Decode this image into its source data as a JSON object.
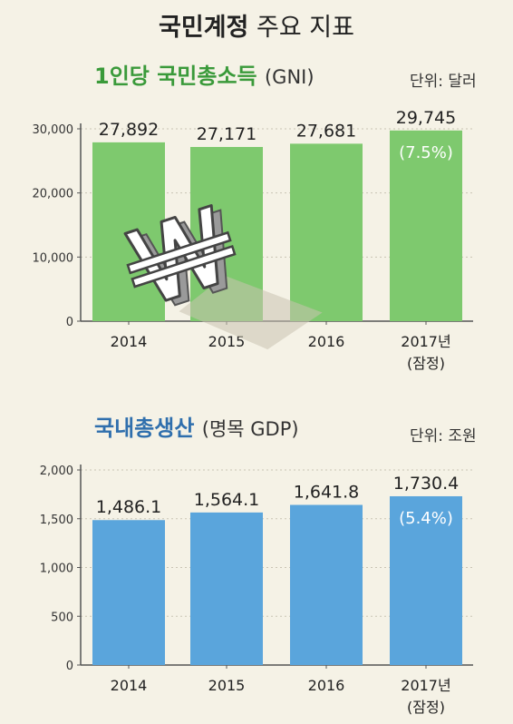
{
  "title": {
    "main": "국민계정",
    "sub": "주요 지표"
  },
  "colors": {
    "gni_bar": "#7ec96e",
    "gdp_bar": "#5aa5dc",
    "background": "#f5f2e6",
    "gni_title": "#3a9a3a",
    "gdp_title": "#2f6fad"
  },
  "icons": [
    "won-sign-icon"
  ],
  "chart_data": [
    {
      "type": "bar",
      "title": "1인당 국민총소득",
      "subtitle": "(GNI)",
      "unit": "단위: 달러",
      "categories": [
        "2014",
        "2015",
        "2016",
        "2017년"
      ],
      "category_notes": [
        "",
        "",
        "",
        "(잠정)"
      ],
      "values": [
        27892,
        27171,
        27681,
        29745
      ],
      "value_labels": [
        "27,892",
        "27,171",
        "27,681",
        "29,745"
      ],
      "annotations": [
        "",
        "",
        "",
        "(7.5%)"
      ],
      "yticks": [
        "0",
        "10,000",
        "20,000",
        "30,000"
      ],
      "ylim": [
        0,
        30000
      ],
      "grid": true
    },
    {
      "type": "bar",
      "title": "국내총생산",
      "subtitle": "(명목 GDP)",
      "unit": "단위: 조원",
      "categories": [
        "2014",
        "2015",
        "2016",
        "2017년"
      ],
      "category_notes": [
        "",
        "",
        "",
        "(잠정)"
      ],
      "values": [
        1486.1,
        1564.1,
        1641.8,
        1730.4
      ],
      "value_labels": [
        "1,486.1",
        "1,564.1",
        "1,641.8",
        "1,730.4"
      ],
      "annotations": [
        "",
        "",
        "",
        "(5.4%)"
      ],
      "yticks": [
        "0",
        "500",
        "1,000",
        "1,500",
        "2,000"
      ],
      "ylim": [
        0,
        2000
      ],
      "grid": true
    }
  ]
}
